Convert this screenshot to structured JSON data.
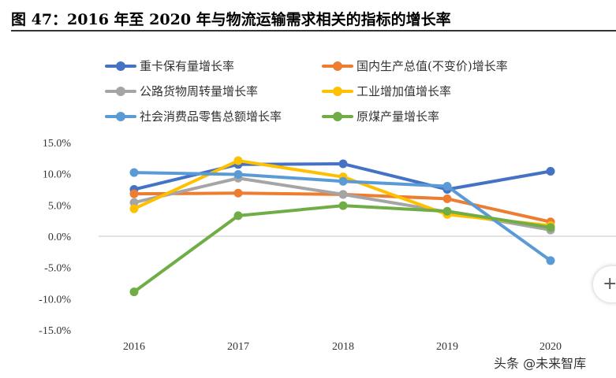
{
  "title": "图 47：2016 年至 2020 年与物流运输需求相关的指标的增长率",
  "watermark": "头条 @未来智库",
  "side_button_icon": "plus-icon",
  "side_button_glyph": "+",
  "chart_data": {
    "type": "line",
    "title": "",
    "categories": [
      "2016",
      "2017",
      "2018",
      "2019",
      "2020"
    ],
    "ylim": [
      -15,
      15
    ],
    "yticks": [
      -15,
      -10,
      -5,
      0,
      5,
      10,
      15
    ],
    "ytick_labels": [
      "-15.0%",
      "-10.0%",
      "-5.0%",
      "0.0%",
      "5.0%",
      "10.0%",
      "15.0%"
    ],
    "grid": "zero-line only",
    "legend": "top",
    "series": [
      {
        "name": "重卡保有量增长率",
        "color": "#4472C4",
        "values": [
          7.5,
          11.5,
          11.6,
          7.5,
          10.4
        ]
      },
      {
        "name": "国内生产总值(不变价)增长率",
        "color": "#ED7D31",
        "values": [
          6.8,
          6.9,
          6.7,
          6.0,
          2.3
        ]
      },
      {
        "name": "公路货物周转量增长率",
        "color": "#A5A5A5",
        "values": [
          5.4,
          9.3,
          6.7,
          3.9,
          1.0
        ]
      },
      {
        "name": "工业增加值增长率",
        "color": "#FFC000",
        "values": [
          4.4,
          12.1,
          9.5,
          3.5,
          1.7
        ]
      },
      {
        "name": "社会消费品零售总额增长率",
        "color": "#5B9BD5",
        "values": [
          10.2,
          9.9,
          8.8,
          8.0,
          -3.9
        ]
      },
      {
        "name": "原煤产量增长率",
        "color": "#70AD47",
        "values": [
          -8.9,
          3.3,
          4.9,
          4.0,
          1.4
        ]
      }
    ]
  }
}
